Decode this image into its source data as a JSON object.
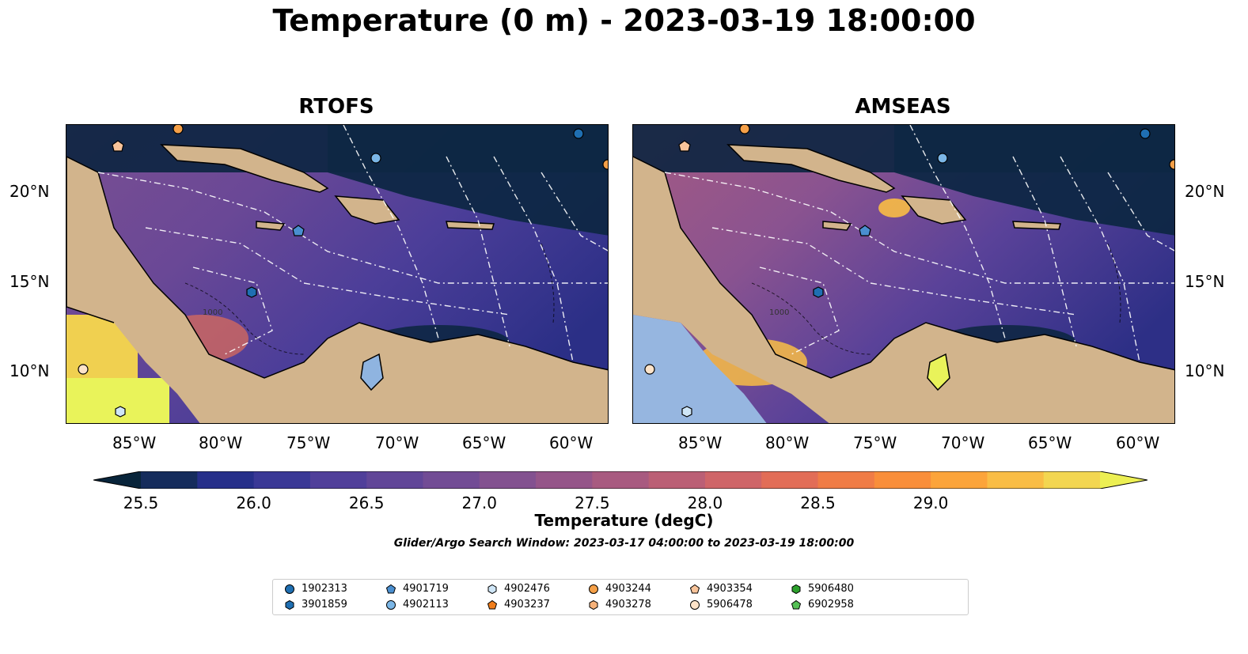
{
  "title": "Temperature (0 m) - 2023-03-19 18:00:00",
  "panels": [
    {
      "title": "RTOFS"
    },
    {
      "title": "AMSEAS"
    }
  ],
  "lon_ticks": [
    "85°W",
    "80°W",
    "75°W",
    "70°W",
    "65°W",
    "60°W"
  ],
  "lat_ticks": [
    "20°N",
    "15°N",
    "10°N"
  ],
  "contour_label": "1000",
  "colorbar": {
    "title": "Temperature (degC)",
    "ticks": [
      "25.5",
      "26.0",
      "26.5",
      "27.0",
      "27.5",
      "28.0",
      "28.5",
      "29.0"
    ],
    "colors": [
      "#08243a",
      "#152c5c",
      "#262f8a",
      "#3a3896",
      "#503f9a",
      "#614698",
      "#724c95",
      "#835190",
      "#955589",
      "#a85a80",
      "#bb5f75",
      "#cf6568",
      "#e26d57",
      "#f07c46",
      "#f98e3a",
      "#fca43a",
      "#f9bd45",
      "#f3d650",
      "#ecef53"
    ]
  },
  "search_window": "Glider/Argo Search Window: 2023-03-17 04:00:00 to 2023-03-19 18:00:00",
  "legend": [
    {
      "label": "1902313",
      "marker": "circle",
      "color": "#1f6fb2"
    },
    {
      "label": "3901859",
      "marker": "hexagon",
      "color": "#1f6fb2"
    },
    {
      "label": "4901719",
      "marker": "pentagon",
      "color": "#4a8fd0"
    },
    {
      "label": "4902113",
      "marker": "circle",
      "color": "#7bb6e6"
    },
    {
      "label": "4902476",
      "marker": "hexagon",
      "color": "#cfe6f7"
    },
    {
      "label": "4903237",
      "marker": "pentagon",
      "color": "#f07d1b"
    },
    {
      "label": "4903244",
      "marker": "circle",
      "color": "#f5a048"
    },
    {
      "label": "4903278",
      "marker": "hexagon",
      "color": "#f7b27a"
    },
    {
      "label": "4903354",
      "marker": "pentagon",
      "color": "#f9c49a"
    },
    {
      "label": "5906478",
      "marker": "circle",
      "color": "#fde3c9"
    },
    {
      "label": "5906480",
      "marker": "hexagon",
      "color": "#2ca02c"
    },
    {
      "label": "6902958",
      "marker": "pentagon",
      "color": "#55c055"
    }
  ]
}
